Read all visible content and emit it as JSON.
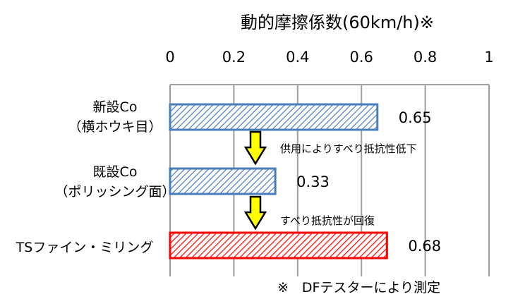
{
  "chart_data": {
    "type": "bar",
    "orientation": "horizontal",
    "title": "動的摩擦係数(60km/h)※",
    "xlim": [
      0,
      1
    ],
    "xticks": [
      "0",
      "0.2",
      "0.4",
      "0.6",
      "0.8",
      "1"
    ],
    "xtick_values": [
      0,
      0.2,
      0.4,
      0.6,
      0.8,
      1
    ],
    "grid": true,
    "categories": [
      {
        "line1": "新設Co",
        "line2": "（横ホウキ目）"
      },
      {
        "line1": "既設Co",
        "line2": "（ポリッシング面）"
      },
      {
        "line1": "TSファイン・ミリング",
        "line2": ""
      }
    ],
    "values": [
      0.65,
      0.33,
      0.68
    ],
    "value_labels": [
      "0.65",
      "0.33",
      "0.68"
    ],
    "bar_styles": [
      {
        "stroke": "#4a7ebb",
        "hatch": "#4a7ebb"
      },
      {
        "stroke": "#4a7ebb",
        "hatch": "#4a7ebb"
      },
      {
        "stroke": "#ff0000",
        "hatch": "#ff0000"
      }
    ],
    "annotations": [
      {
        "text": "供用によりすべり抵抗性低下",
        "arrow_color": "#ffff00"
      },
      {
        "text": "すべり抵抗性が回復",
        "arrow_color": "#ffff00"
      }
    ],
    "footnote": "※　DFテスターにより測定"
  }
}
